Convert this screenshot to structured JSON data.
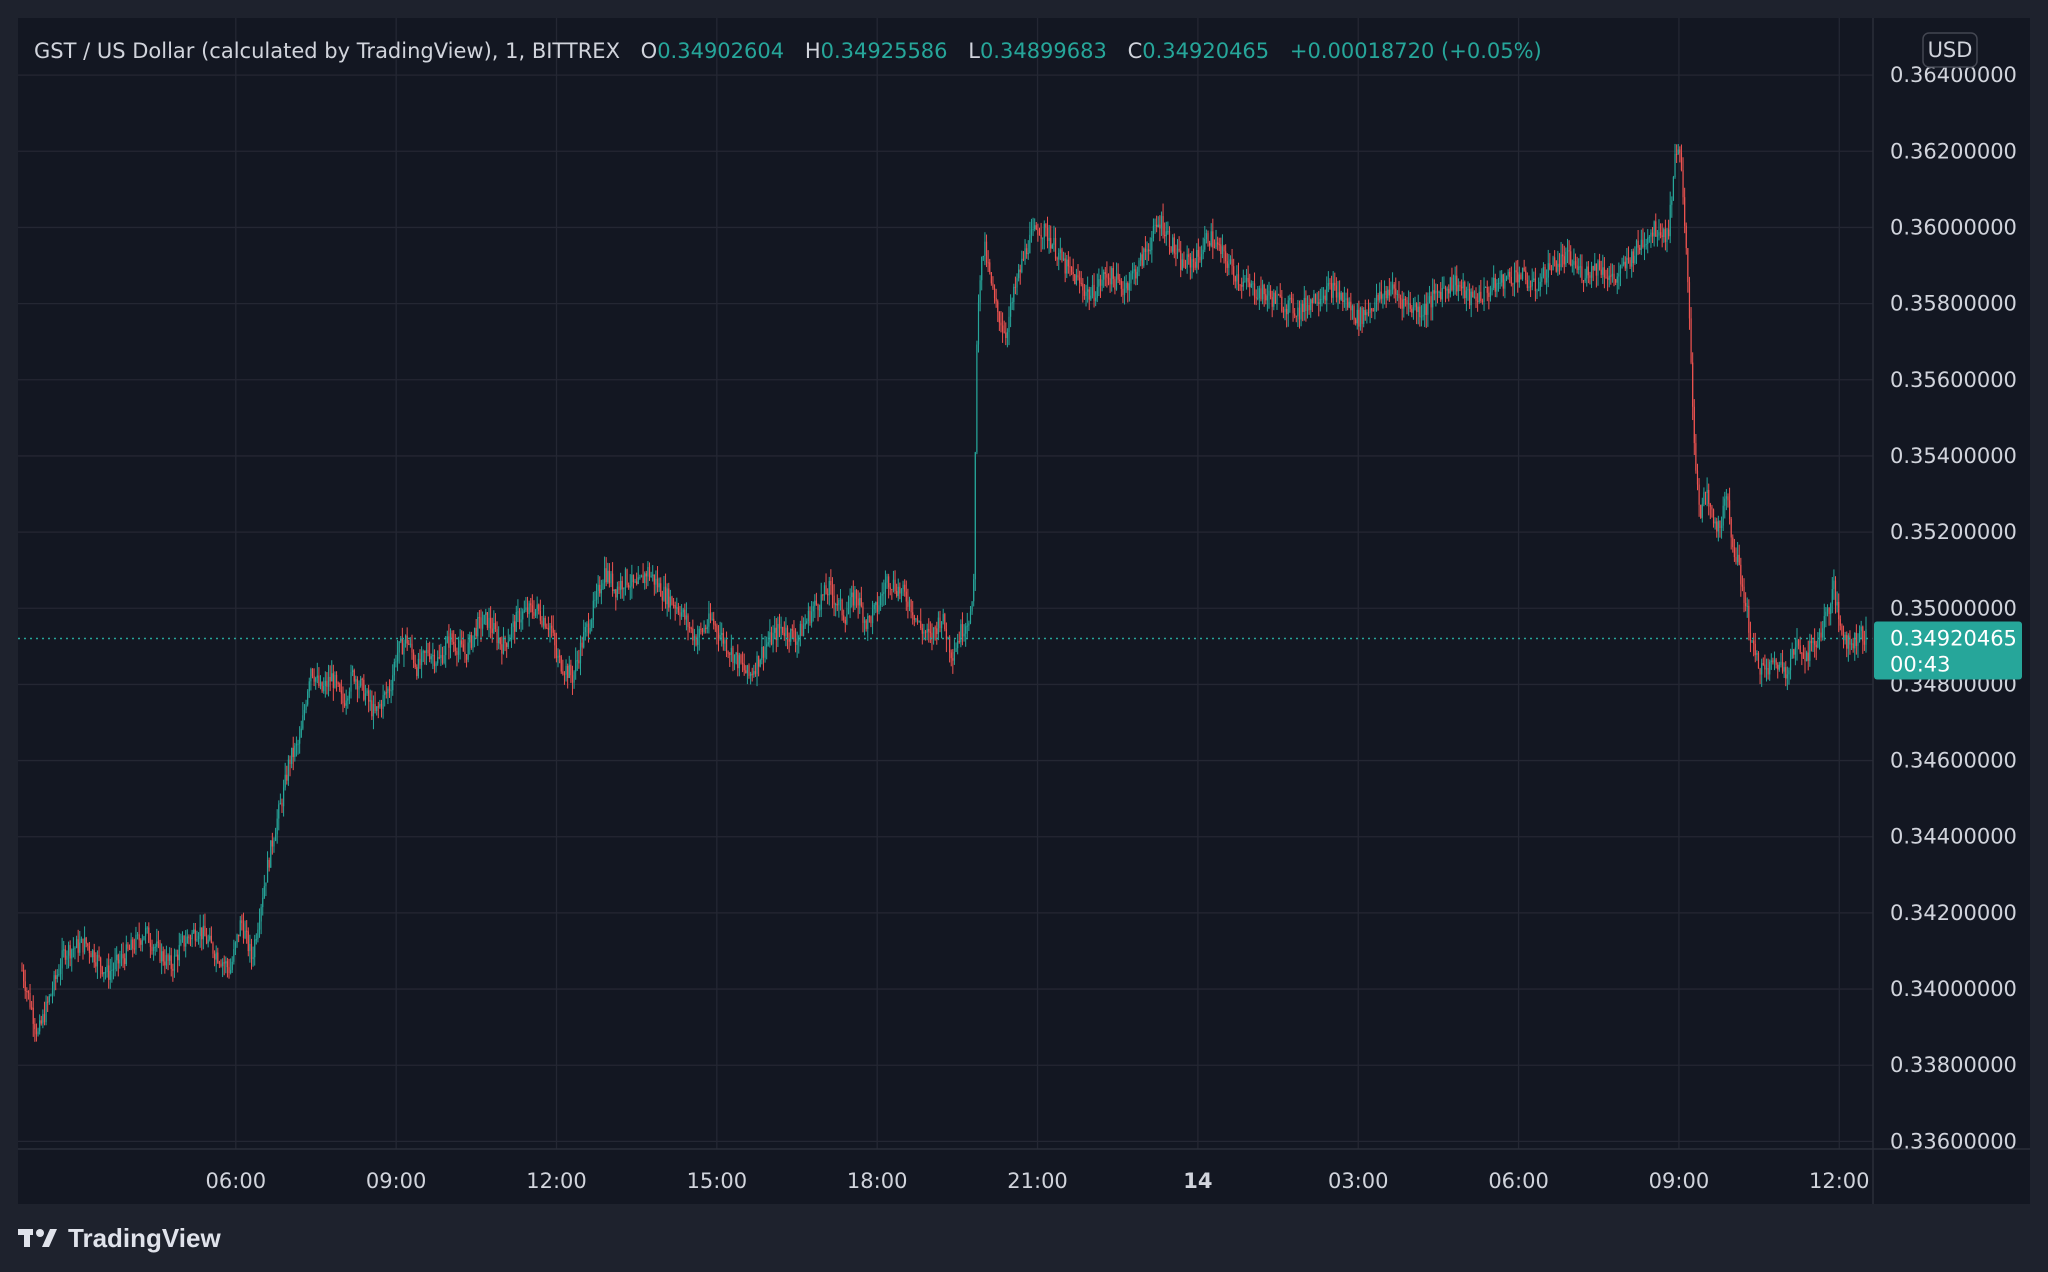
{
  "legend": {
    "symbol": "GST / US Dollar (calculated by TradingView), 1, BITTREX",
    "o_label": "O",
    "o_value": "0.34902604",
    "h_label": "H",
    "h_value": "0.34925586",
    "l_label": "L",
    "l_value": "0.34899683",
    "c_label": "C",
    "c_value": "0.34920465",
    "change": "+0.00018720 (+0.05%)"
  },
  "currency_label": "USD",
  "last_price": {
    "value": "0.34920465",
    "countdown": "00:43"
  },
  "footer": {
    "brand": "TradingView"
  },
  "colors": {
    "up": "#26a69a",
    "down": "#ef5350",
    "background": "#131722",
    "grid": "#242733",
    "text": "#d1d4dc",
    "price_label_bg": "#26a69a"
  },
  "chart_data": {
    "type": "candlestick",
    "interval": "1 minute",
    "y_ticks": [
      "0.36400000",
      "0.36200000",
      "0.36000000",
      "0.35800000",
      "0.35600000",
      "0.35400000",
      "0.35200000",
      "0.35000000",
      "0.34800000",
      "0.34600000",
      "0.34400000",
      "0.34200000",
      "0.34000000",
      "0.33800000",
      "0.33600000"
    ],
    "x_ticks": [
      "06:00",
      "09:00",
      "12:00",
      "15:00",
      "18:00",
      "21:00",
      "14",
      "03:00",
      "06:00",
      "09:00",
      "12:00"
    ],
    "x_range_hours": [
      2.0,
      36.5
    ],
    "ylim": [
      0.3358,
      0.3655
    ],
    "last_price": 0.34920465,
    "price_path": [
      [
        2.0,
        0.3405
      ],
      [
        2.3,
        0.3388
      ],
      [
        2.5,
        0.3397
      ],
      [
        2.8,
        0.341
      ],
      [
        3.2,
        0.3412
      ],
      [
        3.6,
        0.3404
      ],
      [
        4.0,
        0.341
      ],
      [
        4.3,
        0.3415
      ],
      [
        4.6,
        0.3409
      ],
      [
        4.8,
        0.3406
      ],
      [
        5.0,
        0.3412
      ],
      [
        5.3,
        0.3416
      ],
      [
        5.6,
        0.341
      ],
      [
        5.9,
        0.3405
      ],
      [
        6.1,
        0.3418
      ],
      [
        6.3,
        0.3408
      ],
      [
        6.5,
        0.3425
      ],
      [
        6.7,
        0.344
      ],
      [
        6.9,
        0.3452
      ],
      [
        7.0,
        0.346
      ],
      [
        7.2,
        0.3465
      ],
      [
        7.4,
        0.3485
      ],
      [
        7.6,
        0.3478
      ],
      [
        7.8,
        0.3482
      ],
      [
        8.0,
        0.3475
      ],
      [
        8.2,
        0.3483
      ],
      [
        8.4,
        0.3478
      ],
      [
        8.6,
        0.3472
      ],
      [
        8.9,
        0.348
      ],
      [
        9.0,
        0.3488
      ],
      [
        9.2,
        0.3492
      ],
      [
        9.4,
        0.3484
      ],
      [
        9.6,
        0.3489
      ],
      [
        9.8,
        0.3486
      ],
      [
        10.0,
        0.3492
      ],
      [
        10.3,
        0.3488
      ],
      [
        10.5,
        0.3495
      ],
      [
        10.7,
        0.3497
      ],
      [
        11.0,
        0.349
      ],
      [
        11.3,
        0.3498
      ],
      [
        11.6,
        0.35
      ],
      [
        11.9,
        0.3495
      ],
      [
        12.0,
        0.3487
      ],
      [
        12.3,
        0.3482
      ],
      [
        12.5,
        0.3492
      ],
      [
        12.7,
        0.35
      ],
      [
        12.9,
        0.351
      ],
      [
        13.1,
        0.3505
      ],
      [
        13.3,
        0.3508
      ],
      [
        13.5,
        0.3505
      ],
      [
        13.7,
        0.351
      ],
      [
        14.0,
        0.3504
      ],
      [
        14.3,
        0.35
      ],
      [
        14.6,
        0.3492
      ],
      [
        14.9,
        0.3497
      ],
      [
        15.2,
        0.349
      ],
      [
        15.4,
        0.3486
      ],
      [
        15.6,
        0.3482
      ],
      [
        15.9,
        0.349
      ],
      [
        16.2,
        0.3495
      ],
      [
        16.5,
        0.3492
      ],
      [
        16.8,
        0.35
      ],
      [
        17.1,
        0.3505
      ],
      [
        17.4,
        0.3498
      ],
      [
        17.6,
        0.3504
      ],
      [
        17.8,
        0.3496
      ],
      [
        18.0,
        0.35
      ],
      [
        18.2,
        0.3508
      ],
      [
        18.4,
        0.3505
      ],
      [
        18.6,
        0.3502
      ],
      [
        18.8,
        0.3495
      ],
      [
        19.0,
        0.3492
      ],
      [
        19.2,
        0.3498
      ],
      [
        19.4,
        0.3488
      ],
      [
        19.6,
        0.3495
      ],
      [
        19.8,
        0.35
      ],
      [
        19.85,
        0.356
      ],
      [
        19.9,
        0.3585
      ],
      [
        20.0,
        0.3595
      ],
      [
        20.2,
        0.358
      ],
      [
        20.4,
        0.3572
      ],
      [
        20.6,
        0.3585
      ],
      [
        20.8,
        0.3595
      ],
      [
        21.0,
        0.36
      ],
      [
        21.2,
        0.3598
      ],
      [
        21.5,
        0.359
      ],
      [
        21.8,
        0.3585
      ],
      [
        22.0,
        0.3582
      ],
      [
        22.3,
        0.3588
      ],
      [
        22.6,
        0.3584
      ],
      [
        22.9,
        0.359
      ],
      [
        23.1,
        0.3596
      ],
      [
        23.3,
        0.3602
      ],
      [
        23.5,
        0.3596
      ],
      [
        23.7,
        0.359
      ],
      [
        24.0,
        0.3592
      ],
      [
        24.2,
        0.3598
      ],
      [
        24.5,
        0.3592
      ],
      [
        24.8,
        0.3586
      ],
      [
        25.0,
        0.3584
      ],
      [
        25.3,
        0.3582
      ],
      [
        25.6,
        0.358
      ],
      [
        25.9,
        0.3578
      ],
      [
        26.2,
        0.3582
      ],
      [
        26.5,
        0.3584
      ],
      [
        26.8,
        0.358
      ],
      [
        27.0,
        0.3576
      ],
      [
        27.3,
        0.358
      ],
      [
        27.6,
        0.3584
      ],
      [
        27.9,
        0.358
      ],
      [
        28.2,
        0.3578
      ],
      [
        28.5,
        0.3583
      ],
      [
        28.8,
        0.3586
      ],
      [
        29.1,
        0.3581
      ],
      [
        29.4,
        0.3583
      ],
      [
        29.7,
        0.3586
      ],
      [
        30.0,
        0.3588
      ],
      [
        30.3,
        0.3584
      ],
      [
        30.6,
        0.359
      ],
      [
        30.9,
        0.3592
      ],
      [
        31.2,
        0.3588
      ],
      [
        31.5,
        0.359
      ],
      [
        31.8,
        0.3586
      ],
      [
        32.1,
        0.3592
      ],
      [
        32.4,
        0.3598
      ],
      [
        32.6,
        0.36
      ],
      [
        32.8,
        0.3598
      ],
      [
        32.9,
        0.3615
      ],
      [
        33.0,
        0.3624
      ],
      [
        33.15,
        0.359
      ],
      [
        33.3,
        0.354
      ],
      [
        33.4,
        0.3525
      ],
      [
        33.5,
        0.353
      ],
      [
        33.7,
        0.352
      ],
      [
        33.9,
        0.3528
      ],
      [
        34.0,
        0.3518
      ],
      [
        34.2,
        0.3505
      ],
      [
        34.4,
        0.3488
      ],
      [
        34.6,
        0.3483
      ],
      [
        34.8,
        0.3486
      ],
      [
        35.0,
        0.3484
      ],
      [
        35.2,
        0.349
      ],
      [
        35.4,
        0.3488
      ],
      [
        35.6,
        0.3492
      ],
      [
        35.8,
        0.35
      ],
      [
        35.9,
        0.3505
      ],
      [
        36.0,
        0.3496
      ],
      [
        36.2,
        0.349
      ],
      [
        36.4,
        0.3494
      ],
      [
        36.5,
        0.34920465
      ]
    ]
  }
}
